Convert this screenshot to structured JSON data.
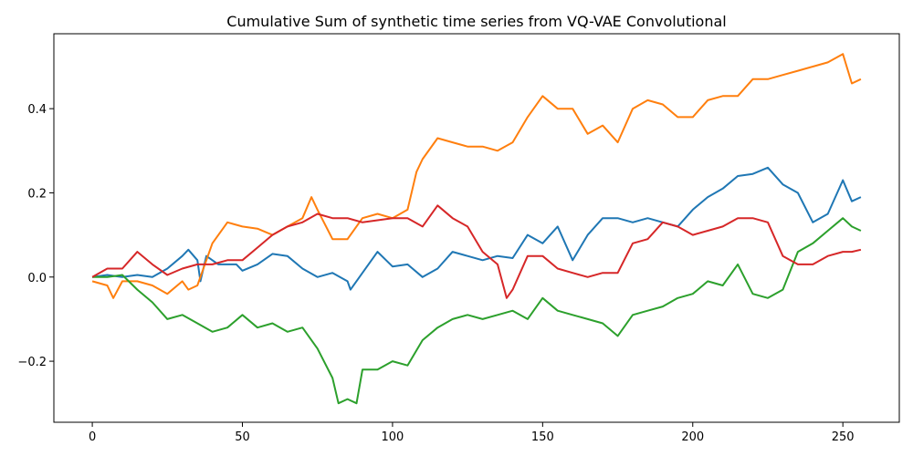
{
  "chart_data": {
    "type": "line",
    "title": "Cumulative Sum of synthetic time series from VQ-VAE Convolutional",
    "xlabel": "",
    "ylabel": "",
    "xlim": [
      -12.8,
      268.8
    ],
    "ylim": [
      -0.345,
      0.578
    ],
    "x_ticks": [
      0,
      50,
      100,
      150,
      200,
      250
    ],
    "x_tick_labels": [
      "0",
      "50",
      "100",
      "150",
      "200",
      "250"
    ],
    "y_ticks": [
      -0.2,
      0.0,
      0.2,
      0.4
    ],
    "y_tick_labels": [
      "−0.2",
      "0.0",
      "0.2",
      "0.4"
    ],
    "grid": false,
    "legend": "none",
    "series": [
      {
        "color": "#1f77b4",
        "points": [
          [
            0,
            0.0
          ],
          [
            5,
            0.005
          ],
          [
            10,
            0.0
          ],
          [
            15,
            0.005
          ],
          [
            20,
            0.0
          ],
          [
            25,
            0.02
          ],
          [
            30,
            0.05
          ],
          [
            32,
            0.065
          ],
          [
            35,
            0.04
          ],
          [
            36,
            -0.01
          ],
          [
            38,
            0.05
          ],
          [
            42,
            0.03
          ],
          [
            48,
            0.03
          ],
          [
            50,
            0.015
          ],
          [
            55,
            0.03
          ],
          [
            60,
            0.055
          ],
          [
            65,
            0.05
          ],
          [
            70,
            0.02
          ],
          [
            75,
            0.0
          ],
          [
            80,
            0.01
          ],
          [
            85,
            -0.01
          ],
          [
            86,
            -0.03
          ],
          [
            90,
            0.01
          ],
          [
            95,
            0.06
          ],
          [
            100,
            0.025
          ],
          [
            105,
            0.03
          ],
          [
            110,
            0.0
          ],
          [
            115,
            0.02
          ],
          [
            120,
            0.06
          ],
          [
            125,
            0.05
          ],
          [
            130,
            0.04
          ],
          [
            135,
            0.05
          ],
          [
            140,
            0.045
          ],
          [
            145,
            0.1
          ],
          [
            150,
            0.08
          ],
          [
            155,
            0.12
          ],
          [
            160,
            0.04
          ],
          [
            165,
            0.1
          ],
          [
            170,
            0.14
          ],
          [
            175,
            0.14
          ],
          [
            180,
            0.13
          ],
          [
            185,
            0.14
          ],
          [
            190,
            0.13
          ],
          [
            195,
            0.12
          ],
          [
            200,
            0.16
          ],
          [
            205,
            0.19
          ],
          [
            210,
            0.21
          ],
          [
            215,
            0.24
          ],
          [
            220,
            0.245
          ],
          [
            225,
            0.26
          ],
          [
            230,
            0.22
          ],
          [
            235,
            0.2
          ],
          [
            240,
            0.13
          ],
          [
            245,
            0.15
          ],
          [
            250,
            0.23
          ],
          [
            253,
            0.18
          ],
          [
            256,
            0.19
          ]
        ]
      },
      {
        "color": "#ff7f0e",
        "points": [
          [
            0,
            -0.01
          ],
          [
            5,
            -0.02
          ],
          [
            7,
            -0.05
          ],
          [
            10,
            -0.01
          ],
          [
            15,
            -0.01
          ],
          [
            20,
            -0.02
          ],
          [
            25,
            -0.04
          ],
          [
            30,
            -0.01
          ],
          [
            32,
            -0.03
          ],
          [
            35,
            -0.02
          ],
          [
            40,
            0.08
          ],
          [
            45,
            0.13
          ],
          [
            50,
            0.12
          ],
          [
            55,
            0.115
          ],
          [
            60,
            0.1
          ],
          [
            65,
            0.12
          ],
          [
            70,
            0.14
          ],
          [
            73,
            0.19
          ],
          [
            75,
            0.16
          ],
          [
            80,
            0.09
          ],
          [
            85,
            0.09
          ],
          [
            90,
            0.14
          ],
          [
            95,
            0.15
          ],
          [
            100,
            0.14
          ],
          [
            105,
            0.16
          ],
          [
            108,
            0.25
          ],
          [
            110,
            0.28
          ],
          [
            115,
            0.33
          ],
          [
            120,
            0.32
          ],
          [
            125,
            0.31
          ],
          [
            130,
            0.31
          ],
          [
            135,
            0.3
          ],
          [
            140,
            0.32
          ],
          [
            145,
            0.38
          ],
          [
            150,
            0.43
          ],
          [
            155,
            0.4
          ],
          [
            160,
            0.4
          ],
          [
            165,
            0.34
          ],
          [
            170,
            0.36
          ],
          [
            175,
            0.32
          ],
          [
            180,
            0.4
          ],
          [
            185,
            0.42
          ],
          [
            190,
            0.41
          ],
          [
            195,
            0.38
          ],
          [
            200,
            0.38
          ],
          [
            205,
            0.42
          ],
          [
            210,
            0.43
          ],
          [
            215,
            0.43
          ],
          [
            220,
            0.47
          ],
          [
            225,
            0.47
          ],
          [
            230,
            0.48
          ],
          [
            235,
            0.49
          ],
          [
            240,
            0.5
          ],
          [
            245,
            0.51
          ],
          [
            250,
            0.53
          ],
          [
            253,
            0.46
          ],
          [
            256,
            0.47
          ]
        ]
      },
      {
        "color": "#2ca02c",
        "points": [
          [
            0,
            0.0
          ],
          [
            5,
            0.0
          ],
          [
            10,
            0.005
          ],
          [
            15,
            -0.03
          ],
          [
            20,
            -0.06
          ],
          [
            25,
            -0.1
          ],
          [
            30,
            -0.09
          ],
          [
            35,
            -0.11
          ],
          [
            40,
            -0.13
          ],
          [
            45,
            -0.12
          ],
          [
            50,
            -0.09
          ],
          [
            55,
            -0.12
          ],
          [
            60,
            -0.11
          ],
          [
            65,
            -0.13
          ],
          [
            70,
            -0.12
          ],
          [
            75,
            -0.17
          ],
          [
            80,
            -0.24
          ],
          [
            82,
            -0.3
          ],
          [
            85,
            -0.29
          ],
          [
            88,
            -0.3
          ],
          [
            90,
            -0.22
          ],
          [
            95,
            -0.22
          ],
          [
            100,
            -0.2
          ],
          [
            105,
            -0.21
          ],
          [
            110,
            -0.15
          ],
          [
            115,
            -0.12
          ],
          [
            120,
            -0.1
          ],
          [
            125,
            -0.09
          ],
          [
            130,
            -0.1
          ],
          [
            135,
            -0.09
          ],
          [
            140,
            -0.08
          ],
          [
            145,
            -0.1
          ],
          [
            150,
            -0.05
          ],
          [
            155,
            -0.08
          ],
          [
            160,
            -0.09
          ],
          [
            165,
            -0.1
          ],
          [
            170,
            -0.11
          ],
          [
            175,
            -0.14
          ],
          [
            180,
            -0.09
          ],
          [
            185,
            -0.08
          ],
          [
            190,
            -0.07
          ],
          [
            195,
            -0.05
          ],
          [
            200,
            -0.04
          ],
          [
            205,
            -0.01
          ],
          [
            210,
            -0.02
          ],
          [
            215,
            0.03
          ],
          [
            220,
            -0.04
          ],
          [
            225,
            -0.05
          ],
          [
            230,
            -0.03
          ],
          [
            235,
            0.06
          ],
          [
            240,
            0.08
          ],
          [
            245,
            0.11
          ],
          [
            250,
            0.14
          ],
          [
            253,
            0.12
          ],
          [
            256,
            0.11
          ]
        ]
      },
      {
        "color": "#d62728",
        "points": [
          [
            0,
            0.0
          ],
          [
            5,
            0.02
          ],
          [
            10,
            0.02
          ],
          [
            15,
            0.06
          ],
          [
            20,
            0.03
          ],
          [
            25,
            0.005
          ],
          [
            30,
            0.02
          ],
          [
            35,
            0.03
          ],
          [
            40,
            0.03
          ],
          [
            45,
            0.04
          ],
          [
            50,
            0.04
          ],
          [
            55,
            0.07
          ],
          [
            60,
            0.1
          ],
          [
            65,
            0.12
          ],
          [
            70,
            0.13
          ],
          [
            75,
            0.15
          ],
          [
            80,
            0.14
          ],
          [
            85,
            0.14
          ],
          [
            90,
            0.13
          ],
          [
            95,
            0.135
          ],
          [
            100,
            0.14
          ],
          [
            105,
            0.14
          ],
          [
            110,
            0.12
          ],
          [
            115,
            0.17
          ],
          [
            120,
            0.14
          ],
          [
            125,
            0.12
          ],
          [
            130,
            0.06
          ],
          [
            135,
            0.03
          ],
          [
            138,
            -0.05
          ],
          [
            140,
            -0.03
          ],
          [
            145,
            0.05
          ],
          [
            150,
            0.05
          ],
          [
            155,
            0.02
          ],
          [
            160,
            0.01
          ],
          [
            165,
            0.0
          ],
          [
            170,
            0.01
          ],
          [
            175,
            0.01
          ],
          [
            180,
            0.08
          ],
          [
            185,
            0.09
          ],
          [
            190,
            0.13
          ],
          [
            195,
            0.12
          ],
          [
            200,
            0.1
          ],
          [
            205,
            0.11
          ],
          [
            210,
            0.12
          ],
          [
            215,
            0.14
          ],
          [
            220,
            0.14
          ],
          [
            225,
            0.13
          ],
          [
            230,
            0.05
          ],
          [
            235,
            0.03
          ],
          [
            240,
            0.03
          ],
          [
            245,
            0.05
          ],
          [
            250,
            0.06
          ],
          [
            253,
            0.06
          ],
          [
            256,
            0.065
          ]
        ]
      }
    ]
  }
}
